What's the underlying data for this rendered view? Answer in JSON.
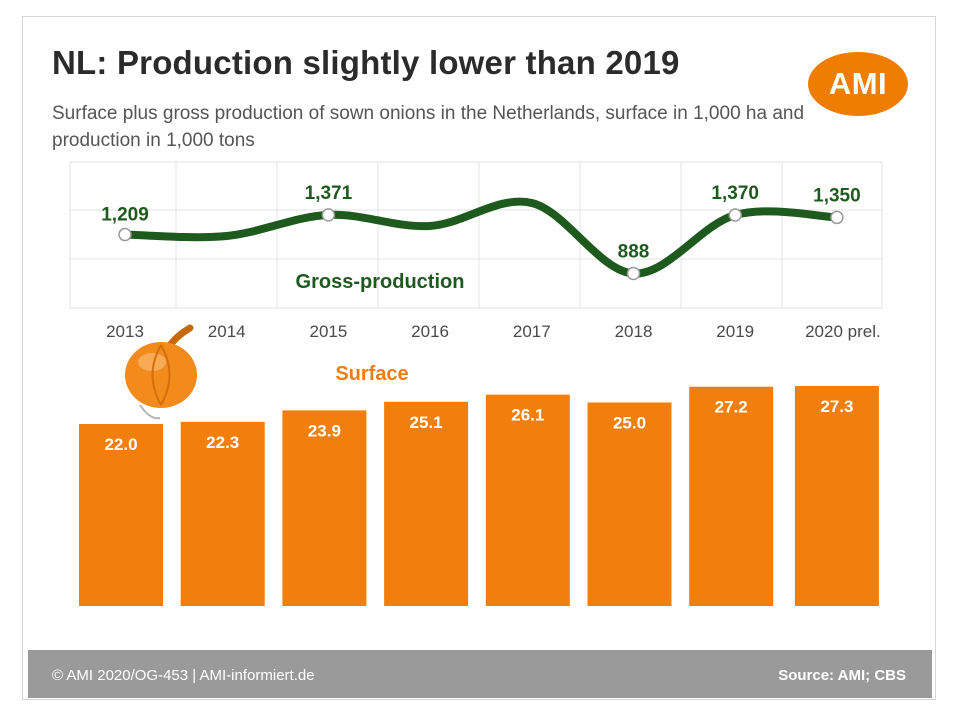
{
  "header": {
    "title": "NL: Production slightly lower than 2019",
    "subtitle": "Surface plus gross production of sown onions in the Netherlands, surface in 1,000 ha and production in 1,000 tons"
  },
  "logo": {
    "text": "AMI"
  },
  "footer": {
    "left": "© AMI 2020/OG-453 | AMI-informiert.de",
    "right": "Source: AMI; CBS"
  },
  "colors": {
    "line": "#1e5a1e",
    "bar": "#f27f0c",
    "surface_label": "#f07d10",
    "footer": "#9a9a9a",
    "brand": "#ef7d00"
  },
  "chart_data": [
    {
      "type": "line",
      "categories": [
        "2013",
        "2014",
        "2015",
        "2016",
        "2017",
        "2018",
        "2019",
        "2020 prel."
      ],
      "series": [
        {
          "name": "Gross-production",
          "values": [
            1209,
            null,
            1371,
            null,
            null,
            888,
            1370,
            1350
          ]
        }
      ],
      "grid": true
    },
    {
      "type": "bar",
      "categories": [
        "2013",
        "2014",
        "2015",
        "2016",
        "2017",
        "2018",
        "2019",
        "2020 prel."
      ],
      "series": [
        {
          "name": "Surface",
          "values": [
            22.0,
            22.3,
            23.9,
            25.1,
            26.1,
            25.0,
            27.2,
            27.3
          ]
        }
      ]
    }
  ]
}
